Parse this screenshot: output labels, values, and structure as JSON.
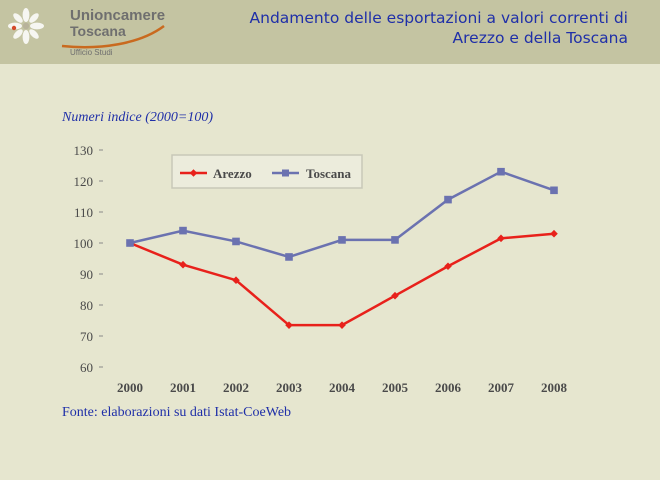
{
  "header": {
    "brand_line1": "Unioncamere",
    "brand_line2": "Toscana",
    "brand_line3": "Ufficio Studi",
    "title": "Andamento delle esportazioni a valori correnti di Arezzo e della Toscana"
  },
  "colors": {
    "arezzo": "#e8211b",
    "toscana": "#6b72b0",
    "text": "#1f2fa8",
    "axis_text": "#4a4a4a"
  },
  "chart_data": {
    "type": "line",
    "subtitle": "Numeri indice (2000=100)",
    "categories": [
      "2000",
      "2001",
      "2002",
      "2003",
      "2004",
      "2005",
      "2006",
      "2007",
      "2008"
    ],
    "series": [
      {
        "name": "Arezzo",
        "values": [
          100,
          93,
          88,
          73.5,
          73.5,
          83,
          92.5,
          101.5,
          103
        ]
      },
      {
        "name": "Toscana",
        "values": [
          100,
          104,
          100.5,
          95.5,
          101,
          101,
          114,
          123,
          117
        ]
      }
    ],
    "ylim": [
      60,
      130
    ],
    "yticks": [
      60,
      70,
      80,
      90,
      100,
      110,
      120,
      130
    ],
    "legend_position": "top-center",
    "grid": false,
    "source_note": "Fonte: elaborazioni su dati Istat-CoeWeb"
  }
}
